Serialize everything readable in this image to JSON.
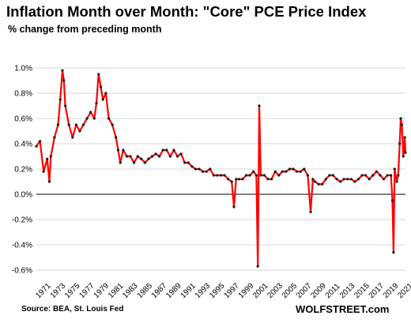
{
  "title": "Inflation Month over Month: \"Core\" PCE Price Index",
  "subtitle": "% change from preceding month",
  "source": "Source: BEA, St. Louis Fed",
  "brand": "WOLFSTREET.com",
  "colors": {
    "line": "#ff0000",
    "marker": "#1a1a1a",
    "zero_line": "#000000",
    "grid": "#d9d9d9"
  },
  "chart_data": {
    "type": "line",
    "title": "Inflation Month over Month: \"Core\" PCE Price Index",
    "subtitle": "% change from preceding month",
    "xlabel": "",
    "ylabel": "",
    "x_range": [
      1971,
      2022
    ],
    "ylim": [
      -0.6,
      1.0
    ],
    "grid": "horizontal",
    "y_ticks": [
      "1.0%",
      "0.8%",
      "0.6%",
      "0.4%",
      "0.2%",
      "0.0%",
      "-0.2%",
      "-0.4%",
      "-0.6%"
    ],
    "x_ticks": [
      "1971",
      "1973",
      "1975",
      "1977",
      "1979",
      "1981",
      "1983",
      "1985",
      "1987",
      "1989",
      "1991",
      "1993",
      "1995",
      "1997",
      "1999",
      "2001",
      "2003",
      "2005",
      "2007",
      "2009",
      "2011",
      "2013",
      "2015",
      "2017",
      "2019",
      "2021"
    ],
    "series": [
      {
        "values": [
          [
            1971.0,
            0.38
          ],
          [
            1971.5,
            0.42
          ],
          [
            1972.0,
            0.18
          ],
          [
            1972.5,
            0.28
          ],
          [
            1972.8,
            0.1
          ],
          [
            1973.0,
            0.3
          ],
          [
            1973.5,
            0.45
          ],
          [
            1974.0,
            0.55
          ],
          [
            1974.3,
            0.75
          ],
          [
            1974.6,
            0.98
          ],
          [
            1974.8,
            0.9
          ],
          [
            1975.0,
            0.7
          ],
          [
            1975.5,
            0.55
          ],
          [
            1976.0,
            0.45
          ],
          [
            1976.5,
            0.55
          ],
          [
            1977.0,
            0.5
          ],
          [
            1977.5,
            0.55
          ],
          [
            1978.0,
            0.6
          ],
          [
            1978.5,
            0.65
          ],
          [
            1979.0,
            0.6
          ],
          [
            1979.3,
            0.72
          ],
          [
            1979.6,
            0.95
          ],
          [
            1979.9,
            0.85
          ],
          [
            1980.2,
            0.75
          ],
          [
            1980.6,
            0.8
          ],
          [
            1981.0,
            0.6
          ],
          [
            1981.5,
            0.55
          ],
          [
            1982.0,
            0.45
          ],
          [
            1982.3,
            0.35
          ],
          [
            1982.6,
            0.25
          ],
          [
            1983.0,
            0.35
          ],
          [
            1983.5,
            0.3
          ],
          [
            1984.0,
            0.3
          ],
          [
            1984.5,
            0.25
          ],
          [
            1985.0,
            0.3
          ],
          [
            1985.5,
            0.28
          ],
          [
            1986.0,
            0.25
          ],
          [
            1986.5,
            0.28
          ],
          [
            1987.0,
            0.3
          ],
          [
            1987.5,
            0.32
          ],
          [
            1988.0,
            0.3
          ],
          [
            1988.5,
            0.35
          ],
          [
            1989.0,
            0.35
          ],
          [
            1989.5,
            0.3
          ],
          [
            1990.0,
            0.35
          ],
          [
            1990.5,
            0.3
          ],
          [
            1991.0,
            0.32
          ],
          [
            1991.5,
            0.25
          ],
          [
            1992.0,
            0.25
          ],
          [
            1992.5,
            0.22
          ],
          [
            1993.0,
            0.2
          ],
          [
            1993.5,
            0.2
          ],
          [
            1994.0,
            0.18
          ],
          [
            1994.5,
            0.18
          ],
          [
            1995.0,
            0.2
          ],
          [
            1995.5,
            0.15
          ],
          [
            1996.0,
            0.15
          ],
          [
            1996.5,
            0.15
          ],
          [
            1997.0,
            0.15
          ],
          [
            1997.5,
            0.12
          ],
          [
            1998.0,
            0.1
          ],
          [
            1998.3,
            -0.1
          ],
          [
            1998.6,
            0.12
          ],
          [
            1999.0,
            0.12
          ],
          [
            1999.5,
            0.12
          ],
          [
            2000.0,
            0.15
          ],
          [
            2000.5,
            0.15
          ],
          [
            2001.0,
            0.18
          ],
          [
            2001.4,
            0.15
          ],
          [
            2001.6,
            -0.57
          ],
          [
            2001.8,
            0.7
          ],
          [
            2002.0,
            0.15
          ],
          [
            2002.5,
            0.15
          ],
          [
            2003.0,
            0.12
          ],
          [
            2003.5,
            0.12
          ],
          [
            2004.0,
            0.18
          ],
          [
            2004.5,
            0.15
          ],
          [
            2005.0,
            0.18
          ],
          [
            2005.5,
            0.18
          ],
          [
            2006.0,
            0.2
          ],
          [
            2006.5,
            0.2
          ],
          [
            2007.0,
            0.18
          ],
          [
            2007.5,
            0.18
          ],
          [
            2008.0,
            0.2
          ],
          [
            2008.5,
            0.15
          ],
          [
            2008.9,
            -0.14
          ],
          [
            2009.2,
            0.12
          ],
          [
            2009.5,
            0.1
          ],
          [
            2010.0,
            0.08
          ],
          [
            2010.5,
            0.08
          ],
          [
            2011.0,
            0.12
          ],
          [
            2011.5,
            0.15
          ],
          [
            2012.0,
            0.15
          ],
          [
            2012.5,
            0.12
          ],
          [
            2013.0,
            0.1
          ],
          [
            2013.5,
            0.12
          ],
          [
            2014.0,
            0.12
          ],
          [
            2014.5,
            0.12
          ],
          [
            2015.0,
            0.1
          ],
          [
            2015.5,
            0.12
          ],
          [
            2016.0,
            0.15
          ],
          [
            2016.5,
            0.15
          ],
          [
            2017.0,
            0.12
          ],
          [
            2017.5,
            0.15
          ],
          [
            2018.0,
            0.18
          ],
          [
            2018.5,
            0.15
          ],
          [
            2019.0,
            0.12
          ],
          [
            2019.5,
            0.15
          ],
          [
            2020.0,
            0.15
          ],
          [
            2020.2,
            -0.05
          ],
          [
            2020.35,
            -0.46
          ],
          [
            2020.5,
            0.2
          ],
          [
            2020.8,
            0.1
          ],
          [
            2021.0,
            0.15
          ],
          [
            2021.2,
            0.4
          ],
          [
            2021.35,
            0.6
          ],
          [
            2021.5,
            0.55
          ],
          [
            2021.7,
            0.3
          ],
          [
            2021.9,
            0.45
          ],
          [
            2022.0,
            0.33
          ]
        ]
      }
    ]
  }
}
